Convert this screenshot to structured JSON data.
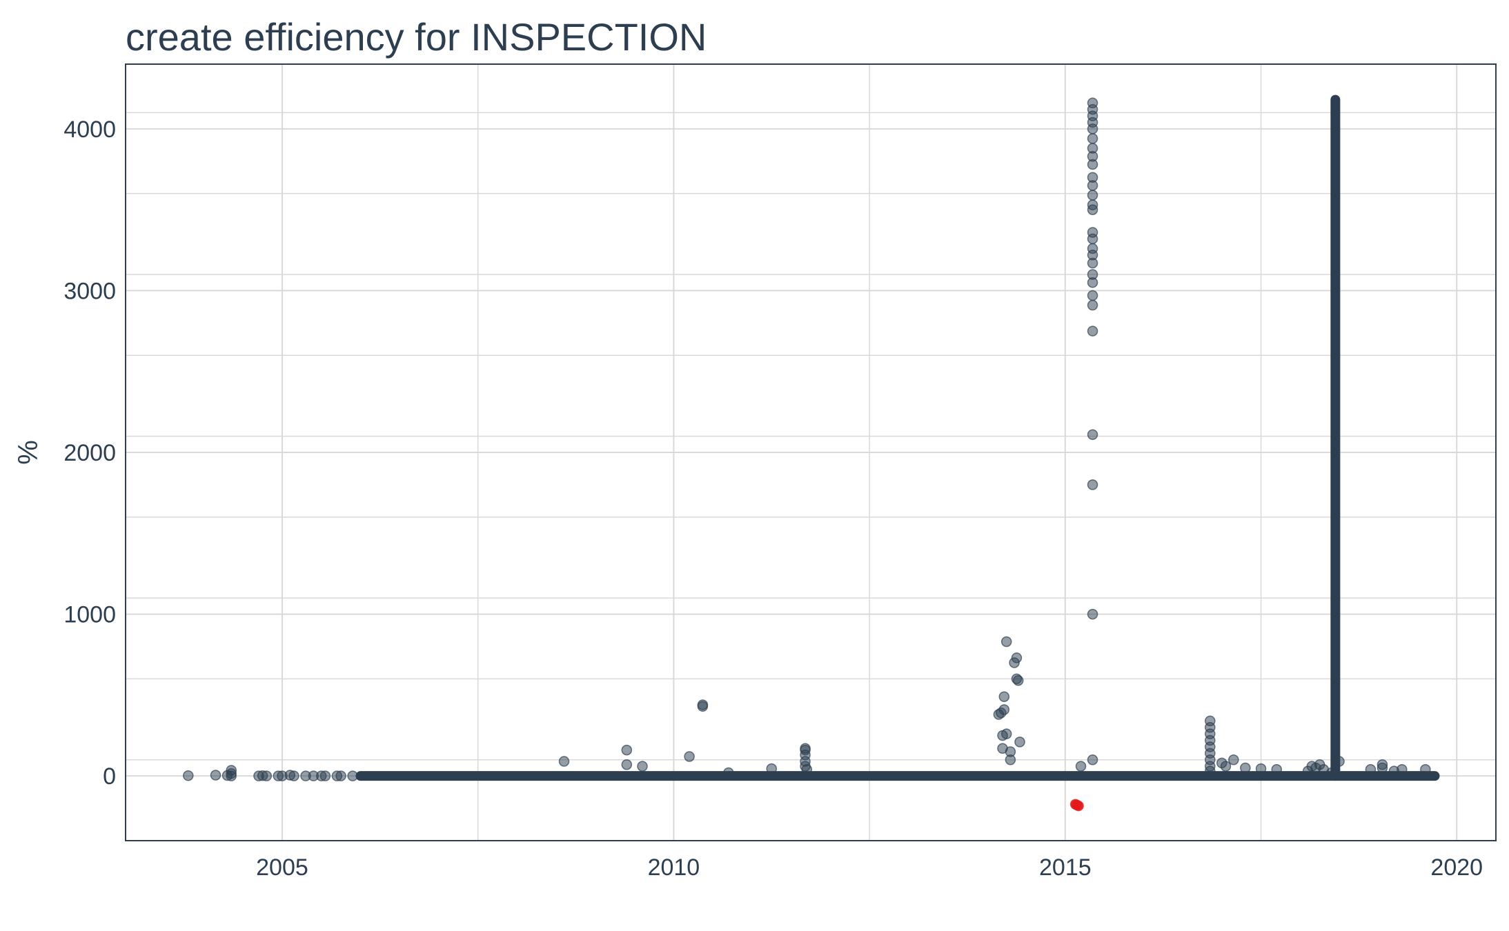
{
  "chart_data": {
    "type": "scatter",
    "title": "create efficiency for INSPECTION",
    "xlabel": "",
    "ylabel": "%",
    "xlim": [
      2003.0,
      2020.5
    ],
    "ylim": [
      -400,
      4400
    ],
    "x_ticks": [
      2005,
      2010,
      2015,
      2020
    ],
    "y_ticks": [
      0,
      1000,
      2000,
      3000,
      4000
    ],
    "grid": true,
    "legend": "none",
    "colors": {
      "points": "#2c3e50",
      "highlight": "#e31a1c",
      "grid": "#d9d9d9",
      "frame": "#2c3e50"
    },
    "series": [
      {
        "values": [
          [
            2003.8,
            2
          ],
          [
            2004.15,
            5
          ],
          [
            2004.3,
            3
          ],
          [
            2004.35,
            35
          ],
          [
            2004.35,
            15
          ],
          [
            2004.35,
            0
          ],
          [
            2004.7,
            0
          ],
          [
            2004.75,
            2
          ],
          [
            2004.8,
            0
          ],
          [
            2004.95,
            0
          ],
          [
            2005.0,
            0
          ],
          [
            2005.1,
            5
          ],
          [
            2005.15,
            0
          ],
          [
            2005.3,
            0
          ],
          [
            2005.4,
            0
          ],
          [
            2005.5,
            0
          ],
          [
            2005.55,
            0
          ],
          [
            2005.7,
            0
          ],
          [
            2005.75,
            0
          ],
          [
            2005.9,
            0
          ],
          [
            2008.6,
            90
          ],
          [
            2009.4,
            160
          ],
          [
            2009.4,
            70
          ],
          [
            2009.6,
            60
          ],
          [
            2010.2,
            120
          ],
          [
            2010.37,
            440
          ],
          [
            2010.37,
            430
          ],
          [
            2010.7,
            20
          ],
          [
            2011.25,
            45
          ],
          [
            2011.68,
            170
          ],
          [
            2011.68,
            160
          ],
          [
            2011.68,
            130
          ],
          [
            2011.68,
            90
          ],
          [
            2011.68,
            60
          ],
          [
            2011.7,
            40
          ],
          [
            2014.15,
            380
          ],
          [
            2014.18,
            390
          ],
          [
            2014.2,
            170
          ],
          [
            2014.2,
            250
          ],
          [
            2014.22,
            410
          ],
          [
            2014.22,
            490
          ],
          [
            2014.25,
            260
          ],
          [
            2014.25,
            830
          ],
          [
            2014.3,
            100
          ],
          [
            2014.3,
            150
          ],
          [
            2014.35,
            700
          ],
          [
            2014.38,
            730
          ],
          [
            2014.38,
            600
          ],
          [
            2014.4,
            590
          ],
          [
            2014.42,
            210
          ],
          [
            2015.2,
            60
          ],
          [
            2015.35,
            1000
          ],
          [
            2015.35,
            100
          ],
          [
            2015.35,
            1800
          ],
          [
            2015.35,
            2110
          ],
          [
            2015.35,
            2750
          ],
          [
            2015.35,
            2910
          ],
          [
            2015.35,
            2970
          ],
          [
            2015.35,
            3050
          ],
          [
            2015.35,
            3100
          ],
          [
            2015.35,
            3170
          ],
          [
            2015.35,
            3220
          ],
          [
            2015.35,
            3260
          ],
          [
            2015.35,
            3320
          ],
          [
            2015.35,
            3360
          ],
          [
            2015.35,
            3500
          ],
          [
            2015.35,
            3530
          ],
          [
            2015.35,
            3590
          ],
          [
            2015.35,
            3650
          ],
          [
            2015.35,
            3700
          ],
          [
            2015.35,
            3780
          ],
          [
            2015.35,
            3830
          ],
          [
            2015.35,
            3880
          ],
          [
            2015.35,
            3940
          ],
          [
            2015.35,
            4000
          ],
          [
            2015.35,
            4040
          ],
          [
            2015.35,
            4080
          ],
          [
            2015.35,
            4120
          ],
          [
            2015.35,
            4160
          ],
          [
            2016.85,
            340
          ],
          [
            2016.85,
            300
          ],
          [
            2016.85,
            260
          ],
          [
            2016.85,
            220
          ],
          [
            2016.85,
            180
          ],
          [
            2016.85,
            140
          ],
          [
            2016.85,
            100
          ],
          [
            2016.85,
            60
          ],
          [
            2016.85,
            30
          ],
          [
            2017.0,
            80
          ],
          [
            2017.05,
            60
          ],
          [
            2017.15,
            100
          ],
          [
            2017.3,
            50
          ],
          [
            2017.5,
            45
          ],
          [
            2017.7,
            40
          ],
          [
            2018.1,
            30
          ],
          [
            2018.15,
            60
          ],
          [
            2018.2,
            50
          ],
          [
            2018.25,
            70
          ],
          [
            2018.3,
            40
          ],
          [
            2018.4,
            20
          ],
          [
            2018.5,
            90
          ],
          [
            2018.9,
            40
          ],
          [
            2019.05,
            70
          ],
          [
            2019.05,
            50
          ],
          [
            2019.2,
            30
          ],
          [
            2019.3,
            40
          ],
          [
            2019.6,
            40
          ]
        ]
      },
      {
        "dense_runs": [
          {
            "x_from": 2006.0,
            "x_to": 2019.72,
            "y": 0
          },
          {
            "x": 2018.45,
            "y_from": 0,
            "y_to": 4180
          }
        ]
      },
      {
        "highlight": true,
        "values": [
          [
            2015.15,
            -180
          ],
          [
            2015.13,
            -175
          ],
          [
            2015.17,
            -185
          ]
        ]
      }
    ]
  }
}
